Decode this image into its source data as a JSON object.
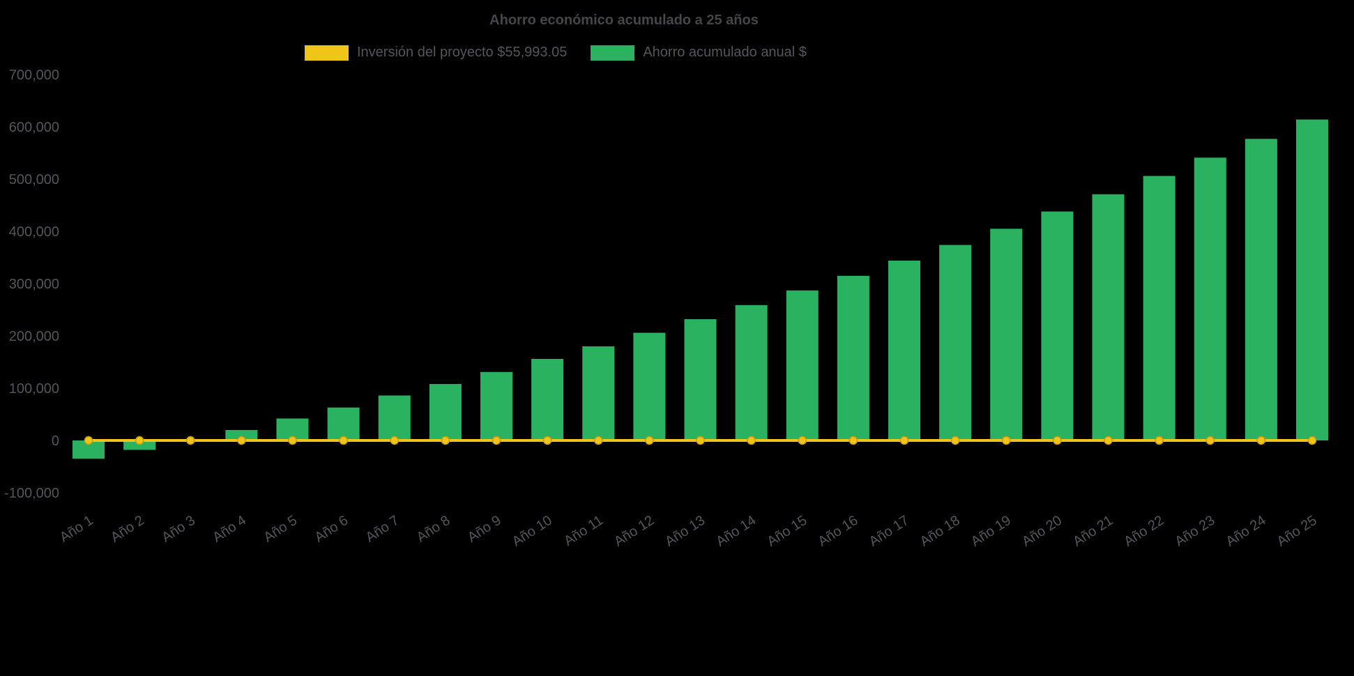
{
  "page": {
    "background_color": "#000000",
    "title_color": "#46464a",
    "label_color": "#55555a"
  },
  "chart_data": {
    "type": "bar",
    "title": "Ahorro económico acumulado a 25 años",
    "xlabel": "",
    "ylabel": "",
    "ylim": [
      -100000,
      700000
    ],
    "ytick_step": 100000,
    "ytick_labels": [
      "-100,000",
      "0",
      "100,000",
      "200,000",
      "300,000",
      "400,000",
      "500,000",
      "600,000",
      "700,000"
    ],
    "grid": false,
    "legend_position": "top",
    "categories": [
      "Año 1",
      "Año 2",
      "Año 3",
      "Año 4",
      "Año 5",
      "Año 6",
      "Año 7",
      "Año 8",
      "Año 9",
      "Año 10",
      "Año 11",
      "Año 12",
      "Año 13",
      "Año 14",
      "Año 15",
      "Año 16",
      "Año 17",
      "Año 18",
      "Año 19",
      "Año 20",
      "Año 21",
      "Año 22",
      "Año 23",
      "Año 24",
      "Año 25"
    ],
    "series": [
      {
        "name": "Inversión del proyecto $55,993.05",
        "type": "line",
        "color": "#f0c419",
        "marker_stroke": "#c79f0e",
        "values": [
          0,
          0,
          0,
          0,
          0,
          0,
          0,
          0,
          0,
          0,
          0,
          0,
          0,
          0,
          0,
          0,
          0,
          0,
          0,
          0,
          0,
          0,
          0,
          0,
          0
        ]
      },
      {
        "name": "Ahorro acumulado anual $",
        "type": "bar",
        "color": "#2bb261",
        "values": [
          -35000,
          -18000,
          1000,
          20000,
          42000,
          63000,
          86000,
          108000,
          131000,
          156000,
          180000,
          206000,
          232000,
          259000,
          287000,
          315000,
          344000,
          374000,
          405000,
          438000,
          471000,
          506000,
          541000,
          577000,
          614000
        ]
      }
    ]
  }
}
